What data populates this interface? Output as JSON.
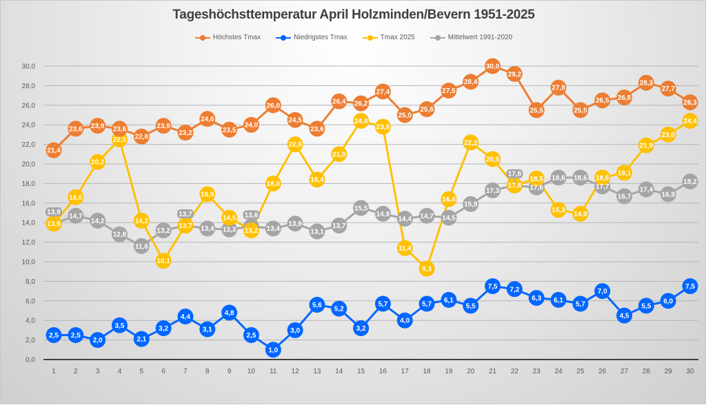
{
  "chart_data": {
    "type": "line",
    "title": "Tageshöchsttemperatur April Holzminden/Bevern 1951-2025",
    "xlabel": "",
    "ylabel": "",
    "x": [
      1,
      2,
      3,
      4,
      5,
      6,
      7,
      8,
      9,
      10,
      11,
      12,
      13,
      14,
      15,
      16,
      17,
      18,
      19,
      20,
      21,
      22,
      23,
      24,
      25,
      26,
      27,
      28,
      29,
      30
    ],
    "ylim": [
      0,
      30
    ],
    "yticks": [
      "0,0",
      "2,0",
      "4,0",
      "6,0",
      "8,0",
      "10,0",
      "12,0",
      "14,0",
      "16,0",
      "18,0",
      "20,0",
      "22,0",
      "24,0",
      "26,0",
      "28,0",
      "30,0"
    ],
    "ytick_values": [
      0,
      2,
      4,
      6,
      8,
      10,
      12,
      14,
      16,
      18,
      20,
      22,
      24,
      26,
      28,
      30
    ],
    "grid": true,
    "legend_position": "top",
    "series": [
      {
        "name": "Mittelwert 1991-2020",
        "color": "#a5a5a5",
        "values": [
          13.9,
          14.7,
          14.2,
          12.8,
          11.6,
          13.2,
          13.7,
          13.4,
          13.3,
          13.6,
          13.4,
          13.9,
          13.1,
          13.7,
          15.5,
          14.9,
          14.4,
          14.7,
          14.5,
          15.9,
          17.3,
          17.8,
          17.6,
          18.6,
          18.6,
          17.7,
          16.7,
          17.4,
          16.9,
          18.2
        ]
      },
      {
        "name": "Tmax 2025",
        "color": "#ffc000",
        "values": [
          13.9,
          16.6,
          20.2,
          22.5,
          14.2,
          10.1,
          13.7,
          16.9,
          14.5,
          13.2,
          18.0,
          22.0,
          18.4,
          21.0,
          24.4,
          23.8,
          11.4,
          9.3,
          16.4,
          22.2,
          20.5,
          17.8,
          18.5,
          15.3,
          14.9,
          18.6,
          19.1,
          21.9,
          23.0,
          24.4
        ]
      },
      {
        "name": "Niedrigstes Tmax",
        "color": "#0066ff",
        "values": [
          2.5,
          2.5,
          2.0,
          3.5,
          2.1,
          3.2,
          4.4,
          3.1,
          4.8,
          2.5,
          1.0,
          3.0,
          5.6,
          5.2,
          3.2,
          5.7,
          4.0,
          5.7,
          6.1,
          5.5,
          7.5,
          7.2,
          6.3,
          6.1,
          5.7,
          7.0,
          4.5,
          5.5,
          6.0,
          7.5
        ]
      },
      {
        "name": "Höchstes Tmax",
        "color": "#ed7d31",
        "values": [
          21.4,
          23.6,
          23.9,
          23.6,
          22.8,
          23.9,
          23.2,
          24.6,
          23.5,
          24.0,
          26.0,
          24.5,
          23.6,
          26.4,
          26.2,
          27.4,
          25.0,
          25.6,
          27.5,
          28.4,
          30.0,
          29.2,
          25.5,
          27.8,
          25.5,
          26.5,
          26.8,
          28.3,
          27.7,
          26.3
        ]
      }
    ],
    "legend": [
      {
        "name": "Höchstes Tmax",
        "color": "#ed7d31"
      },
      {
        "name": "Niedrigstes Tmax",
        "color": "#0066ff"
      },
      {
        "name": "Tmax 2025",
        "color": "#ffc000"
      },
      {
        "name": "Mittelwert 1991-2020",
        "color": "#a5a5a5"
      }
    ]
  }
}
